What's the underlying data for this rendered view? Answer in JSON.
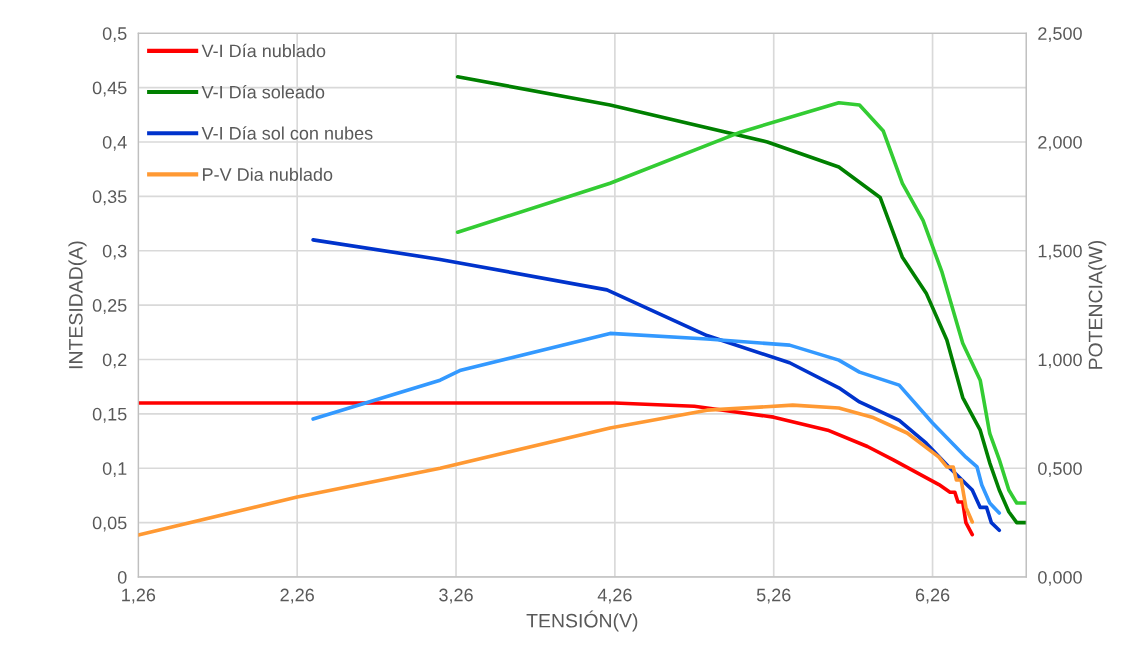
{
  "chart_data": {
    "type": "line",
    "xlabel": "TENSIÓN(V)",
    "ylabel": "INTESIDAD(A)",
    "y2label": "POTENCIA(W)",
    "xlim": [
      1.26,
      6.85
    ],
    "xticks": [
      {
        "value": 1.26,
        "label": "1,26"
      },
      {
        "value": 2.26,
        "label": "2,26"
      },
      {
        "value": 3.26,
        "label": "3,26"
      },
      {
        "value": 4.26,
        "label": "4,26"
      },
      {
        "value": 5.26,
        "label": "5,26"
      },
      {
        "value": 6.26,
        "label": "6,26"
      }
    ],
    "ylim": [
      0,
      0.5
    ],
    "yticks": [
      0,
      {
        "value": 0.05,
        "label": "0,05"
      },
      {
        "value": 0.1,
        "label": "0,1"
      },
      {
        "value": 0.15,
        "label": "0,15"
      },
      {
        "value": 0.2,
        "label": "0,2"
      },
      {
        "value": 0.25,
        "label": "0,25"
      },
      {
        "value": 0.3,
        "label": "0,3"
      },
      {
        "value": 0.35,
        "label": "0,35"
      },
      {
        "value": 0.4,
        "label": "0,4"
      },
      {
        "value": 0.45,
        "label": "0,45"
      },
      {
        "value": 0.5,
        "label": "0,5"
      }
    ],
    "y2lim": [
      0,
      2.5
    ],
    "y2ticks": [
      {
        "value": 0,
        "label": "0,000"
      },
      {
        "value": 0.5,
        "label": "0,500"
      },
      {
        "value": 1.0,
        "label": "1,000"
      },
      {
        "value": 1.5,
        "label": "1,500"
      },
      {
        "value": 2.0,
        "label": "2,000"
      },
      {
        "value": 2.5,
        "label": "2,500"
      }
    ],
    "grid": true,
    "legend": "top left",
    "marker": "none",
    "line_style": "solid",
    "series": [
      {
        "name": "V-I Día nublado",
        "color": "#ff0000",
        "x": [
          1.26,
          2.26,
          3.26,
          4.26,
          4.76,
          5.26,
          5.6,
          5.85,
          6.01,
          6.3,
          6.37,
          6.4,
          6.42,
          6.45,
          6.47,
          6.51
        ],
        "values": [
          0.16,
          0.16,
          0.16,
          0.16,
          0.157,
          0.147,
          0.135,
          0.12,
          0.108,
          0.085,
          0.078,
          0.078,
          0.069,
          0.069,
          0.05,
          0.039
        ]
      },
      {
        "name": "V-I Día soleado",
        "color": "#008000",
        "x": [
          3.27,
          4.23,
          5.22,
          5.67,
          5.93,
          6.07,
          6.22,
          6.35,
          6.45,
          6.56,
          6.62,
          6.68,
          6.74,
          6.79,
          6.85
        ],
        "values": [
          0.46,
          0.434,
          0.4,
          0.377,
          0.349,
          0.294,
          0.261,
          0.218,
          0.165,
          0.135,
          0.105,
          0.08,
          0.06,
          0.05,
          0.05
        ]
      },
      {
        "name": "V-I Día sol con nubes",
        "color": "#0033cc",
        "x": [
          2.36,
          3.16,
          4.21,
          4.84,
          5.36,
          5.67,
          5.8,
          6.05,
          6.22,
          6.37,
          6.51,
          6.56,
          6.6,
          6.63,
          6.68
        ],
        "values": [
          0.31,
          0.292,
          0.264,
          0.222,
          0.197,
          0.174,
          0.161,
          0.144,
          0.123,
          0.1,
          0.08,
          0.064,
          0.064,
          0.05,
          0.043
        ]
      },
      {
        "name": "P-V Dia nublado",
        "color": "#ff9933",
        "axis": "y2",
        "x": [
          1.26,
          2.26,
          3.16,
          4.23,
          4.84,
          5.38,
          5.67,
          5.88,
          6.1,
          6.3,
          6.35,
          6.39,
          6.41,
          6.44,
          6.47,
          6.51
        ],
        "values": [
          0.193,
          0.368,
          0.5,
          0.685,
          0.767,
          0.79,
          0.777,
          0.735,
          0.662,
          0.551,
          0.506,
          0.506,
          0.446,
          0.446,
          0.32,
          0.253
        ]
      },
      {
        "color": "#33cc33",
        "axis": "y2",
        "x": [
          3.27,
          4.23,
          5.05,
          5.67,
          5.8,
          5.95,
          6.07,
          6.2,
          6.32,
          6.45,
          6.56,
          6.62,
          6.68,
          6.74,
          6.79,
          6.85
        ],
        "values": [
          1.585,
          1.81,
          2.045,
          2.18,
          2.17,
          2.05,
          1.81,
          1.64,
          1.4,
          1.075,
          0.905,
          0.66,
          0.54,
          0.4,
          0.34,
          0.34
        ]
      },
      {
        "color": "#3399ff",
        "axis": "y2",
        "x": [
          2.36,
          3.16,
          3.29,
          4.23,
          4.84,
          5.36,
          5.67,
          5.8,
          6.05,
          6.26,
          6.47,
          6.54,
          6.57,
          6.62,
          6.68
        ],
        "values": [
          0.726,
          0.905,
          0.951,
          1.12,
          1.094,
          1.066,
          0.997,
          0.942,
          0.882,
          0.708,
          0.551,
          0.506,
          0.423,
          0.34,
          0.294
        ]
      }
    ]
  }
}
